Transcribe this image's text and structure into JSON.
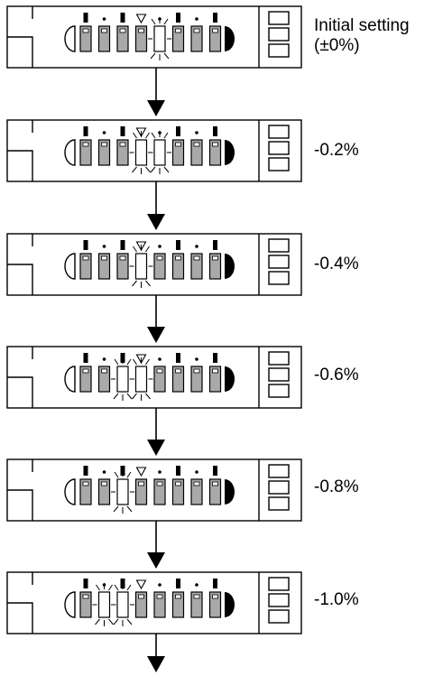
{
  "steps": [
    {
      "label_line1": "Initial setting",
      "label_line2": "(±0%)",
      "lit_segments": [
        4
      ]
    },
    {
      "label_line1": "-0.2%",
      "label_line2": "",
      "lit_segments": [
        3,
        4
      ]
    },
    {
      "label_line1": "-0.4%",
      "label_line2": "",
      "lit_segments": [
        3
      ]
    },
    {
      "label_line1": "-0.6%",
      "label_line2": "",
      "lit_segments": [
        2,
        3
      ]
    },
    {
      "label_line1": "-0.8%",
      "label_line2": "",
      "lit_segments": [
        2
      ]
    },
    {
      "label_line1": "-1.0%",
      "label_line2": "",
      "lit_segments": [
        1,
        2
      ]
    }
  ],
  "segment_count": 8,
  "colors": {
    "segment_fill": "#a9a9a9",
    "lit_fill": "#ffffff",
    "stroke": "#000000"
  }
}
